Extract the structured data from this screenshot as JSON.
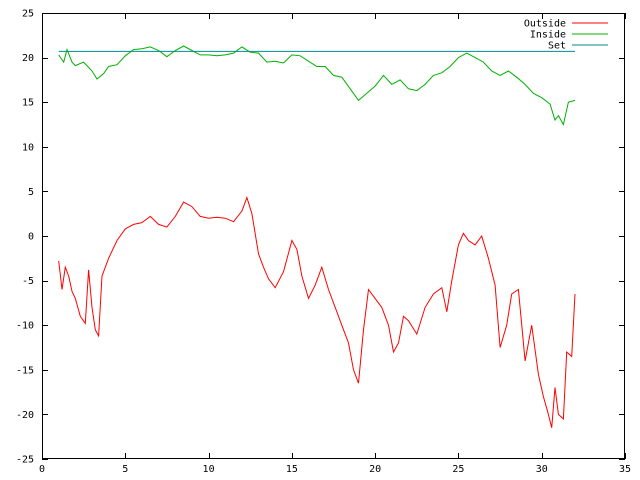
{
  "chart_data": {
    "type": "line",
    "title": "",
    "xlabel": "",
    "ylabel": "",
    "xlim": [
      0,
      35
    ],
    "ylim": [
      -25,
      25
    ],
    "x_ticks": [
      0,
      5,
      10,
      15,
      20,
      25,
      30,
      35
    ],
    "y_ticks": [
      -25,
      -20,
      -15,
      -10,
      -5,
      0,
      5,
      10,
      15,
      20,
      25
    ],
    "grid": false,
    "legend_position": "top-right",
    "series": [
      {
        "name": "Outside",
        "color": "#ff0000",
        "points": [
          [
            1.0,
            -2.8
          ],
          [
            1.2,
            -6.0
          ],
          [
            1.4,
            -3.5
          ],
          [
            1.6,
            -4.5
          ],
          [
            1.8,
            -6.2
          ],
          [
            2.0,
            -7.0
          ],
          [
            2.3,
            -9.0
          ],
          [
            2.6,
            -9.8
          ],
          [
            2.8,
            -3.8
          ],
          [
            3.0,
            -8.0
          ],
          [
            3.2,
            -10.5
          ],
          [
            3.4,
            -11.2
          ],
          [
            3.6,
            -4.5
          ],
          [
            4.0,
            -2.5
          ],
          [
            4.5,
            -0.5
          ],
          [
            5.0,
            0.8
          ],
          [
            5.5,
            1.3
          ],
          [
            6.0,
            1.5
          ],
          [
            6.5,
            2.2
          ],
          [
            7.0,
            1.3
          ],
          [
            7.5,
            1.0
          ],
          [
            8.0,
            2.2
          ],
          [
            8.5,
            3.8
          ],
          [
            9.0,
            3.3
          ],
          [
            9.5,
            2.2
          ],
          [
            10.0,
            2.0
          ],
          [
            10.5,
            2.1
          ],
          [
            11.0,
            2.0
          ],
          [
            11.5,
            1.6
          ],
          [
            12.0,
            2.8
          ],
          [
            12.3,
            4.3
          ],
          [
            12.6,
            2.5
          ],
          [
            13.0,
            -2.0
          ],
          [
            13.3,
            -3.5
          ],
          [
            13.6,
            -4.8
          ],
          [
            14.0,
            -5.8
          ],
          [
            14.5,
            -4.0
          ],
          [
            15.0,
            -0.5
          ],
          [
            15.3,
            -1.5
          ],
          [
            15.6,
            -4.5
          ],
          [
            16.0,
            -7.0
          ],
          [
            16.4,
            -5.5
          ],
          [
            16.8,
            -3.5
          ],
          [
            17.2,
            -6.0
          ],
          [
            17.6,
            -8.0
          ],
          [
            18.0,
            -10.0
          ],
          [
            18.4,
            -12.0
          ],
          [
            18.7,
            -15.0
          ],
          [
            19.0,
            -16.5
          ],
          [
            19.3,
            -10.5
          ],
          [
            19.6,
            -6.0
          ],
          [
            20.0,
            -7.0
          ],
          [
            20.4,
            -8.0
          ],
          [
            20.8,
            -10.0
          ],
          [
            21.1,
            -13.0
          ],
          [
            21.4,
            -12.0
          ],
          [
            21.7,
            -9.0
          ],
          [
            22.0,
            -9.5
          ],
          [
            22.5,
            -11.0
          ],
          [
            23.0,
            -8.0
          ],
          [
            23.5,
            -6.5
          ],
          [
            24.0,
            -5.8
          ],
          [
            24.3,
            -8.5
          ],
          [
            24.6,
            -5.0
          ],
          [
            25.0,
            -1.0
          ],
          [
            25.3,
            0.3
          ],
          [
            25.6,
            -0.5
          ],
          [
            26.0,
            -1.0
          ],
          [
            26.4,
            0.0
          ],
          [
            26.8,
            -2.5
          ],
          [
            27.2,
            -5.5
          ],
          [
            27.5,
            -12.5
          ],
          [
            27.9,
            -10.0
          ],
          [
            28.2,
            -6.5
          ],
          [
            28.6,
            -6.0
          ],
          [
            29.0,
            -14.0
          ],
          [
            29.4,
            -10.0
          ],
          [
            29.8,
            -15.5
          ],
          [
            30.1,
            -18.0
          ],
          [
            30.4,
            -20.0
          ],
          [
            30.6,
            -21.5
          ],
          [
            30.8,
            -17.0
          ],
          [
            31.0,
            -20.0
          ],
          [
            31.3,
            -20.5
          ],
          [
            31.5,
            -13.0
          ],
          [
            31.8,
            -13.5
          ],
          [
            32.0,
            -6.5
          ]
        ]
      },
      {
        "name": "Inside",
        "color": "#00b000",
        "points": [
          [
            1.0,
            20.3
          ],
          [
            1.3,
            19.5
          ],
          [
            1.5,
            20.9
          ],
          [
            1.8,
            19.5
          ],
          [
            2.0,
            19.1
          ],
          [
            2.5,
            19.5
          ],
          [
            3.0,
            18.5
          ],
          [
            3.3,
            17.6
          ],
          [
            3.7,
            18.2
          ],
          [
            4.0,
            19.0
          ],
          [
            4.5,
            19.2
          ],
          [
            5.0,
            20.2
          ],
          [
            5.5,
            20.9
          ],
          [
            6.0,
            21.0
          ],
          [
            6.5,
            21.2
          ],
          [
            7.0,
            20.8
          ],
          [
            7.5,
            20.1
          ],
          [
            8.0,
            20.8
          ],
          [
            8.5,
            21.3
          ],
          [
            9.0,
            20.8
          ],
          [
            9.5,
            20.3
          ],
          [
            10.0,
            20.3
          ],
          [
            10.5,
            20.2
          ],
          [
            11.0,
            20.3
          ],
          [
            11.5,
            20.5
          ],
          [
            12.0,
            21.2
          ],
          [
            12.5,
            20.6
          ],
          [
            13.0,
            20.5
          ],
          [
            13.5,
            19.5
          ],
          [
            14.0,
            19.6
          ],
          [
            14.5,
            19.4
          ],
          [
            15.0,
            20.3
          ],
          [
            15.5,
            20.2
          ],
          [
            16.0,
            19.6
          ],
          [
            16.5,
            19.0
          ],
          [
            17.0,
            19.0
          ],
          [
            17.5,
            18.0
          ],
          [
            18.0,
            17.8
          ],
          [
            18.5,
            16.5
          ],
          [
            19.0,
            15.2
          ],
          [
            19.5,
            16.0
          ],
          [
            20.0,
            16.8
          ],
          [
            20.5,
            18.0
          ],
          [
            21.0,
            17.0
          ],
          [
            21.5,
            17.5
          ],
          [
            22.0,
            16.5
          ],
          [
            22.5,
            16.3
          ],
          [
            23.0,
            17.0
          ],
          [
            23.5,
            18.0
          ],
          [
            24.0,
            18.3
          ],
          [
            24.5,
            19.0
          ],
          [
            25.0,
            20.0
          ],
          [
            25.5,
            20.5
          ],
          [
            26.0,
            20.0
          ],
          [
            26.5,
            19.5
          ],
          [
            27.0,
            18.5
          ],
          [
            27.5,
            18.0
          ],
          [
            28.0,
            18.5
          ],
          [
            28.5,
            17.8
          ],
          [
            29.0,
            17.0
          ],
          [
            29.5,
            16.0
          ],
          [
            30.0,
            15.5
          ],
          [
            30.5,
            14.8
          ],
          [
            30.8,
            13.0
          ],
          [
            31.0,
            13.5
          ],
          [
            31.3,
            12.5
          ],
          [
            31.6,
            15.0
          ],
          [
            32.0,
            15.2
          ]
        ]
      },
      {
        "name": "Set",
        "color": "#008b8b",
        "points": [
          [
            1.0,
            20.7
          ],
          [
            32.0,
            20.7
          ]
        ]
      }
    ]
  }
}
